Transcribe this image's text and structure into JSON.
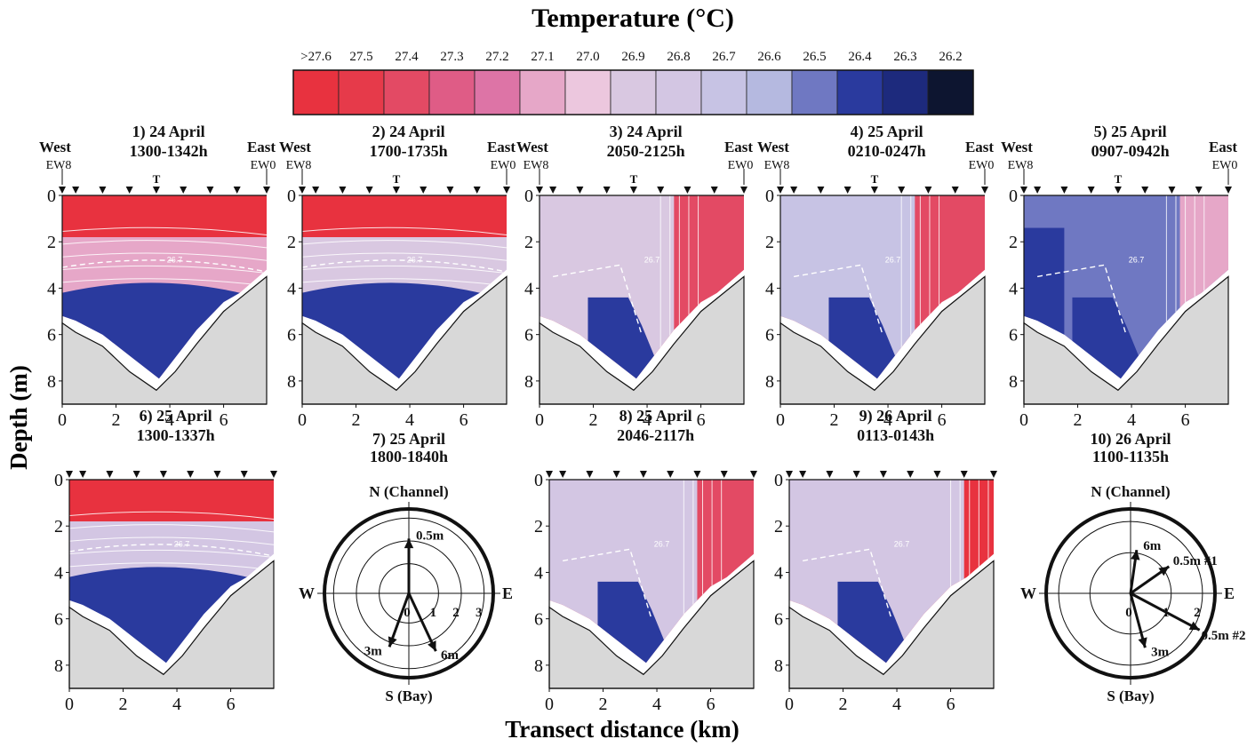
{
  "title": "Temperature (°C)",
  "x_axis_label": "Transect distance (km)",
  "y_axis_label": "Depth (m)",
  "colorbar": {
    "labels": [
      ">27.6",
      "27.5",
      "27.4",
      "27.3",
      "27.2",
      "27.1",
      "27.0",
      "26.9",
      "26.8",
      "26.7",
      "26.6",
      "26.5",
      "26.4",
      "26.3",
      "26.2"
    ],
    "colors": [
      "#e8323f",
      "#e63a4a",
      "#e34a64",
      "#df5c86",
      "#dd74a6",
      "#e6a7c8",
      "#ecc7de",
      "#d9c8e1",
      "#d3c6e3",
      "#c7c3e4",
      "#b5b9e0",
      "#6f78c2",
      "#2a3a9e",
      "#1d2a7d",
      "#0d1530"
    ]
  },
  "contour_label": "26.7",
  "station_marker_label": "T",
  "panels": [
    {
      "title": "1)  24 April",
      "time": "1300-1342h",
      "west": "West",
      "east": "East",
      "west_station": "EW8",
      "east_station": "EW0",
      "surface": "#e8323f",
      "mid": "#e6a7c8",
      "bottom": "#2a3a9e",
      "pattern": "layered"
    },
    {
      "title": "2)  24 April",
      "time": "1700-1735h",
      "west": "West",
      "east": "East",
      "west_station": "EW8",
      "east_station": "EW0",
      "surface": "#e8323f",
      "mid": "#d9c8e1",
      "bottom": "#2a3a9e",
      "pattern": "layered"
    },
    {
      "title": "3)  24 April",
      "time": "2050-2125h",
      "west": "West",
      "east": "East",
      "west_station": "EW8",
      "east_station": "EW0",
      "surface": "#d9c8e1",
      "mid": "#e34a64",
      "bottom": "#2a3a9e",
      "pattern": "front"
    },
    {
      "title": "4)  25 April",
      "time": "0210-0247h",
      "west": "West",
      "east": "East",
      "west_station": "EW8",
      "east_station": "EW0",
      "surface": "#c7c3e4",
      "mid": "#e34a64",
      "bottom": "#2a3a9e",
      "pattern": "front"
    },
    {
      "title": "5)  25 April",
      "time": "0907-0942h",
      "west": "West",
      "east": "East",
      "west_station": "EW8",
      "east_station": "EW0",
      "surface": "#6f78c2",
      "mid": "#e6a7c8",
      "bottom": "#2a3a9e",
      "pattern": "front-west"
    },
    {
      "title": "6)  25 April",
      "time": "1300-1337h",
      "surface": "#e8323f",
      "mid": "#d3c6e3",
      "bottom": "#2a3a9e",
      "pattern": "layered-wedge"
    },
    {
      "title": "8)  25 April",
      "time": "2046-2117h",
      "surface": "#d3c6e3",
      "mid": "#e34a64",
      "bottom": "#2a3a9e",
      "pattern": "front-east"
    },
    {
      "title": "9)  26 April",
      "time": "0113-0143h",
      "surface": "#d3c6e3",
      "mid": "#e8323f",
      "bottom": "#2a3a9e",
      "pattern": "front-east-small"
    }
  ],
  "y_ticks": [
    "0",
    "2",
    "4",
    "6",
    "8"
  ],
  "x_ticks": [
    "0",
    "2",
    "4",
    "6"
  ],
  "current_roses": [
    {
      "title": "7)  25 April",
      "time": "1800-1840h",
      "north": "N (Channel)",
      "south": "S (Bay)",
      "west": "W",
      "east": "E",
      "ring_labels": [
        "0",
        "1",
        "2",
        "3"
      ],
      "vectors": [
        {
          "label": "0.5m",
          "speed": 2.1,
          "direction_deg": 0
        },
        {
          "label": "3m",
          "speed": 2.2,
          "direction_deg": 200
        },
        {
          "label": "6m",
          "speed": 2.5,
          "direction_deg": 155
        }
      ]
    },
    {
      "title": "10)  26 April",
      "time": "1100-1135h",
      "north": "N (Channel)",
      "south": "S (Bay)",
      "west": "W",
      "east": "E",
      "ring_labels": [
        "0",
        "1",
        "2"
      ],
      "vectors": [
        {
          "label": "6m",
          "speed": 1.1,
          "direction_deg": 8
        },
        {
          "label": "0.5m #1",
          "speed": 1.2,
          "direction_deg": 55
        },
        {
          "label": "0.5m #2",
          "speed": 2.2,
          "direction_deg": 118
        },
        {
          "label": "3m",
          "speed": 1.5,
          "direction_deg": 165
        }
      ]
    }
  ]
}
